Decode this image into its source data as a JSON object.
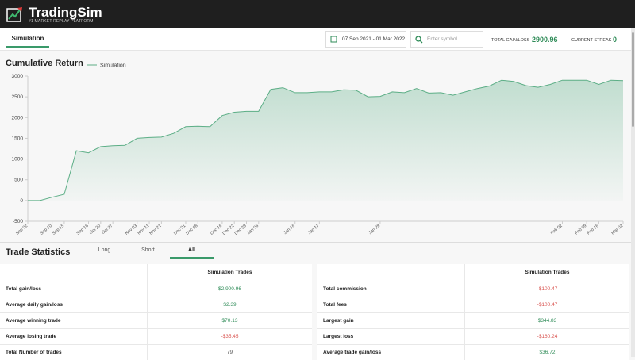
{
  "header": {
    "brand": "TradingSim",
    "tagline": "#1 MARKET REPLAY PLATFORM"
  },
  "nav": {
    "tab": "Simulation",
    "date_range": "07 Sep 2021 - 01 Mar 2022",
    "symbol_placeholder": "Enter symbol",
    "total_gain_loss_label": "TOTAL GAIN/LOSS",
    "total_gain_loss": 2900.96,
    "current_streak_label": "CURRENT STREAK",
    "current_streak": 0
  },
  "chart_data": {
    "type": "area",
    "title": "Cumulative Return",
    "categories": [
      "Sep 02",
      null,
      "Sep 10",
      "Sep 15",
      null,
      "Sep 18",
      "Oct 20",
      "Oct 27",
      null,
      "Nov 03",
      "Nov 11",
      "Nov 21",
      null,
      "Dec 01",
      "Dec 08",
      null,
      "Dec 16",
      "Dec 22",
      "Dec 29",
      "Jan 06",
      null,
      null,
      "Jan 16",
      null,
      "Jan 17",
      null,
      null,
      null,
      null,
      "Jan 28",
      null,
      null,
      null,
      null,
      null,
      null,
      null,
      null,
      null,
      null,
      null,
      null,
      null,
      null,
      "Feb 02",
      null,
      "Feb 09",
      "Feb 16",
      null,
      "Mar 02"
    ],
    "series": [
      {
        "name": "Simulation",
        "color": "#5cae86",
        "values": [
          0,
          0,
          80,
          150,
          1200,
          1150,
          1300,
          1320,
          1330,
          1500,
          1520,
          1530,
          1620,
          1780,
          1790,
          1780,
          2050,
          2130,
          2150,
          2150,
          2680,
          2720,
          2600,
          2600,
          2620,
          2620,
          2670,
          2660,
          2500,
          2510,
          2620,
          2600,
          2700,
          2590,
          2600,
          2540,
          2620,
          2700,
          2760,
          2900,
          2870,
          2770,
          2730,
          2800,
          2900,
          2900,
          2900,
          2800,
          2900,
          2890
        ]
      }
    ],
    "ylim": [
      -500,
      3000
    ],
    "yticks": [
      -500,
      0,
      500,
      1000,
      1500,
      2000,
      2500,
      3000
    ],
    "grid": false
  },
  "stats": {
    "title": "Trade Statistics",
    "tabs": [
      "Long",
      "Short",
      "All"
    ],
    "active_tab": 2,
    "tables": [
      {
        "header": "Simulation Trades",
        "rows": [
          [
            "Total gain/loss",
            "$2,900.96"
          ],
          [
            "Average daily gain/loss",
            "$2.39"
          ],
          [
            "Average winning trade",
            "$70.13"
          ],
          [
            "Average losing trade",
            "-$35.45"
          ],
          [
            "Total Number of trades",
            "79"
          ]
        ]
      },
      {
        "header": "Simulation Trades",
        "rows": [
          [
            "Total commission",
            "-$100.47"
          ],
          [
            "Total fees",
            "-$100.47"
          ],
          [
            "Largest gain",
            "$344.83"
          ],
          [
            "Largest loss",
            "-$160.24"
          ],
          [
            "Average trade gain/loss",
            "$36.72"
          ]
        ]
      }
    ]
  }
}
